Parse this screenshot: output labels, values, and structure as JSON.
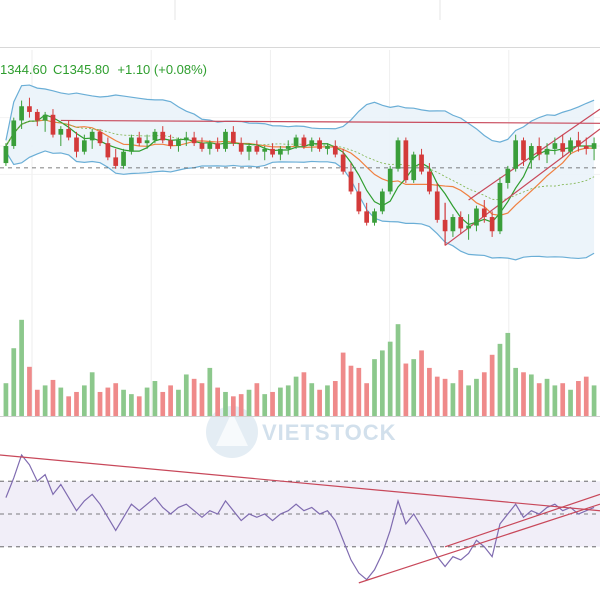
{
  "header": {
    "ohlc_open": "1344.60",
    "ohlc_close": "C1345.80",
    "ohlc_change": "+1.10 (+0.08%)"
  },
  "watermark": {
    "text": "VIETSTOCK"
  },
  "colors": {
    "up": "#3a9e3a",
    "down": "#d33a3a",
    "volume_up": "#8cc88c",
    "volume_down": "#ef8a8a",
    "bollinger": "#6aaed6",
    "bollinger_fill": "#eaf3fa",
    "ma_fast": "#2f9e2f",
    "ma_slow": "#f08040",
    "trendline": "#c8485a",
    "rsi_line": "#7f6bb0",
    "rsi_fill": "#f1eef8",
    "reference": "#555555"
  },
  "chart_data": [
    {
      "type": "candlestick",
      "name": "price",
      "candles": [
        [
          1348,
          1362,
          1346,
          1360
        ],
        [
          1360,
          1380,
          1358,
          1378
        ],
        [
          1378,
          1392,
          1372,
          1388
        ],
        [
          1388,
          1394,
          1380,
          1384
        ],
        [
          1384,
          1386,
          1374,
          1378
        ],
        [
          1378,
          1384,
          1370,
          1382
        ],
        [
          1382,
          1386,
          1366,
          1368
        ],
        [
          1368,
          1374,
          1360,
          1372
        ],
        [
          1372,
          1378,
          1364,
          1366
        ],
        [
          1366,
          1370,
          1352,
          1356
        ],
        [
          1356,
          1368,
          1354,
          1364
        ],
        [
          1364,
          1372,
          1358,
          1370
        ],
        [
          1370,
          1372,
          1360,
          1362
        ],
        [
          1362,
          1366,
          1350,
          1352
        ],
        [
          1352,
          1358,
          1344,
          1346
        ],
        [
          1346,
          1358,
          1344,
          1356
        ],
        [
          1356,
          1368,
          1354,
          1366
        ],
        [
          1366,
          1370,
          1360,
          1362
        ],
        [
          1362,
          1368,
          1358,
          1364
        ],
        [
          1364,
          1372,
          1362,
          1370
        ],
        [
          1370,
          1374,
          1362,
          1364
        ],
        [
          1364,
          1368,
          1358,
          1360
        ],
        [
          1360,
          1366,
          1356,
          1364
        ],
        [
          1364,
          1370,
          1360,
          1366
        ],
        [
          1366,
          1370,
          1360,
          1362
        ],
        [
          1362,
          1366,
          1356,
          1358
        ],
        [
          1358,
          1364,
          1354,
          1362
        ],
        [
          1362,
          1366,
          1356,
          1358
        ],
        [
          1358,
          1372,
          1356,
          1370
        ],
        [
          1370,
          1374,
          1360,
          1362
        ],
        [
          1362,
          1366,
          1354,
          1356
        ],
        [
          1356,
          1362,
          1350,
          1360
        ],
        [
          1360,
          1364,
          1354,
          1356
        ],
        [
          1356,
          1360,
          1350,
          1358
        ],
        [
          1358,
          1362,
          1352,
          1354
        ],
        [
          1354,
          1360,
          1350,
          1358
        ],
        [
          1358,
          1364,
          1354,
          1360
        ],
        [
          1360,
          1368,
          1358,
          1366
        ],
        [
          1366,
          1368,
          1358,
          1360
        ],
        [
          1360,
          1366,
          1356,
          1364
        ],
        [
          1364,
          1366,
          1356,
          1358
        ],
        [
          1358,
          1362,
          1354,
          1360
        ],
        [
          1360,
          1364,
          1352,
          1354
        ],
        [
          1354,
          1358,
          1340,
          1342
        ],
        [
          1342,
          1348,
          1326,
          1328
        ],
        [
          1328,
          1334,
          1312,
          1314
        ],
        [
          1314,
          1320,
          1304,
          1306
        ],
        [
          1306,
          1316,
          1304,
          1314
        ],
        [
          1314,
          1330,
          1312,
          1328
        ],
        [
          1328,
          1346,
          1326,
          1344
        ],
        [
          1344,
          1366,
          1342,
          1364
        ],
        [
          1364,
          1366,
          1334,
          1336
        ],
        [
          1336,
          1356,
          1334,
          1354
        ],
        [
          1354,
          1358,
          1340,
          1342
        ],
        [
          1342,
          1348,
          1326,
          1328
        ],
        [
          1328,
          1334,
          1306,
          1308
        ],
        [
          1308,
          1320,
          1290,
          1300
        ],
        [
          1300,
          1312,
          1296,
          1310
        ],
        [
          1310,
          1314,
          1298,
          1302
        ],
        [
          1302,
          1312,
          1294,
          1304
        ],
        [
          1304,
          1318,
          1300,
          1316
        ],
        [
          1316,
          1322,
          1306,
          1310
        ],
        [
          1310,
          1314,
          1296,
          1300
        ],
        [
          1300,
          1338,
          1298,
          1334
        ],
        [
          1334,
          1346,
          1330,
          1344
        ],
        [
          1344,
          1368,
          1342,
          1364
        ],
        [
          1364,
          1366,
          1346,
          1350
        ],
        [
          1350,
          1362,
          1344,
          1360
        ],
        [
          1360,
          1366,
          1350,
          1354
        ],
        [
          1354,
          1362,
          1348,
          1358
        ],
        [
          1358,
          1366,
          1354,
          1362
        ],
        [
          1362,
          1368,
          1352,
          1356
        ],
        [
          1356,
          1366,
          1354,
          1364
        ],
        [
          1364,
          1370,
          1356,
          1360
        ],
        [
          1360,
          1366,
          1354,
          1358
        ],
        [
          1358,
          1366,
          1350,
          1362
        ]
      ],
      "reference_levels": [
        1344.6
      ]
    },
    {
      "type": "bar",
      "name": "volume",
      "values": [
        30,
        62,
        88,
        45,
        24,
        28,
        33,
        26,
        18,
        22,
        28,
        40,
        22,
        26,
        30,
        24,
        20,
        18,
        26,
        32,
        22,
        28,
        24,
        38,
        34,
        30,
        44,
        26,
        22,
        18,
        20,
        24,
        30,
        20,
        22,
        26,
        28,
        36,
        40,
        30,
        24,
        28,
        32,
        58,
        46,
        44,
        30,
        52,
        60,
        68,
        84,
        48,
        52,
        60,
        44,
        36,
        34,
        30,
        42,
        28,
        34,
        40,
        56,
        66,
        76,
        44,
        40,
        38,
        30,
        34,
        28,
        30,
        24,
        32,
        36,
        28
      ],
      "directions": [
        1,
        1,
        1,
        0,
        0,
        1,
        0,
        1,
        0,
        0,
        1,
        1,
        0,
        0,
        0,
        1,
        1,
        0,
        1,
        1,
        0,
        0,
        1,
        1,
        0,
        0,
        1,
        0,
        1,
        0,
        0,
        1,
        0,
        1,
        0,
        1,
        1,
        1,
        0,
        1,
        0,
        1,
        0,
        0,
        0,
        0,
        0,
        1,
        1,
        1,
        1,
        0,
        1,
        0,
        0,
        0,
        0,
        1,
        0,
        1,
        1,
        0,
        0,
        1,
        1,
        1,
        0,
        1,
        0,
        1,
        1,
        0,
        1,
        0,
        0,
        1
      ]
    },
    {
      "type": "line",
      "name": "rsi",
      "values": [
        60,
        72,
        86,
        80,
        70,
        74,
        62,
        68,
        60,
        52,
        58,
        62,
        56,
        48,
        40,
        48,
        56,
        52,
        56,
        60,
        54,
        50,
        54,
        56,
        52,
        48,
        52,
        50,
        58,
        52,
        46,
        50,
        48,
        50,
        46,
        50,
        52,
        56,
        52,
        54,
        50,
        52,
        46,
        34,
        22,
        14,
        10,
        16,
        26,
        40,
        58,
        44,
        50,
        42,
        34,
        24,
        18,
        24,
        22,
        26,
        34,
        30,
        24,
        44,
        50,
        56,
        48,
        52,
        50,
        54,
        56,
        52,
        54,
        50,
        52,
        54
      ],
      "ylim": [
        0,
        100
      ],
      "levels": [
        30,
        50,
        70
      ]
    }
  ]
}
